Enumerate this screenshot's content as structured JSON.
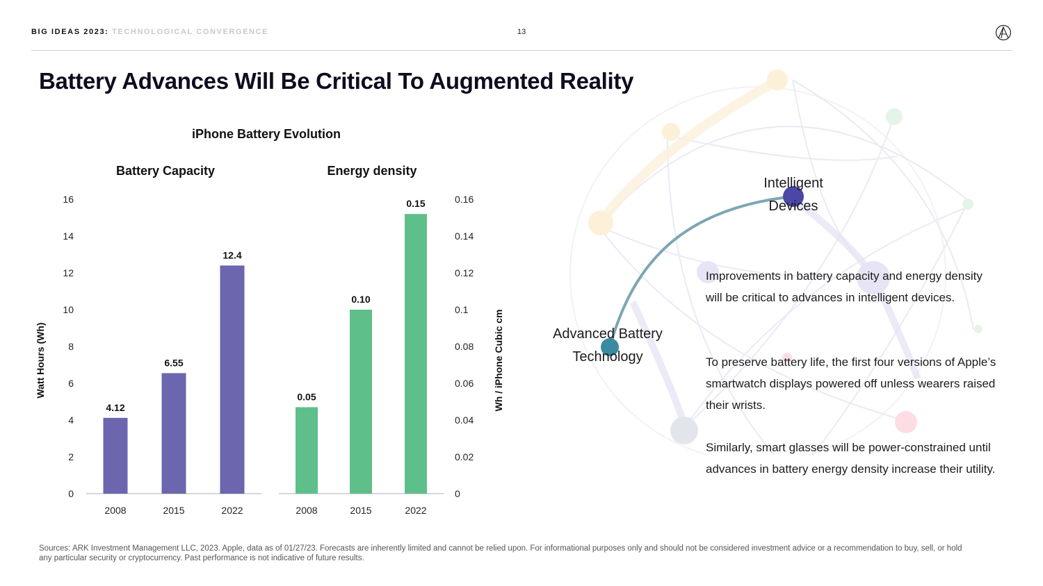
{
  "header": {
    "series": "BIG IDEAS 2023",
    "topic": "TECHNOLOGICAL CONVERGENCE",
    "page_number": "13"
  },
  "title": "Battery Advances Will Be Critical To Augmented Reality",
  "figure_title": "iPhone Battery Evolution",
  "colors": {
    "capacity_bar": "#6b66ad",
    "density_bar": "#5fbf8a",
    "arc": "#7da6b4",
    "node_devices": "#4b47a6",
    "node_battery": "#3a8aa0"
  },
  "chart_data": [
    {
      "type": "bar",
      "title": "Battery Capacity",
      "categories": [
        "2008",
        "2015",
        "2022"
      ],
      "values": [
        4.12,
        6.55,
        12.4
      ],
      "value_labels": [
        "4.12",
        "6.55",
        "12.4"
      ],
      "ylabel": "Watt Hours (Wh)",
      "ylim": [
        0,
        16
      ],
      "yticks": [
        "0",
        "2",
        "4",
        "6",
        "8",
        "10",
        "12",
        "14",
        "16"
      ],
      "ytick_values": [
        0,
        2,
        4,
        6,
        8,
        10,
        12,
        14,
        16
      ],
      "grid": false,
      "color": "#6b66ad"
    },
    {
      "type": "bar",
      "title": "Energy density",
      "categories": [
        "2008",
        "2015",
        "2022"
      ],
      "values": [
        0.047,
        0.1,
        0.152
      ],
      "value_labels": [
        "0.05",
        "0.10",
        "0.15"
      ],
      "ylabel": "Wh / iPhone Cubic cm",
      "ylim": [
        0,
        0.16
      ],
      "yticks": [
        "0",
        "0.02",
        "0.04",
        "0.06",
        "0.08",
        "0.1",
        "0.12",
        "0.14",
        "0.16"
      ],
      "ytick_values": [
        0,
        0.02,
        0.04,
        0.06,
        0.08,
        0.1,
        0.12,
        0.14,
        0.16
      ],
      "grid": false,
      "color": "#5fbf8a"
    }
  ],
  "diagram": {
    "node_devices": [
      "Intelligent",
      "Devices"
    ],
    "node_battery": [
      "Advanced Battery",
      "Technology"
    ]
  },
  "paragraphs": [
    "Improvements in battery capacity and energy density will be critical to advances in intelligent devices.",
    "To preserve battery life, the first four versions of Apple’s smartwatch displays powered off unless wearers raised their wrists.",
    "Similarly, smart glasses will be power-constrained until advances in battery energy density increase their utility."
  ],
  "sources": "Sources: ARK Investment Management LLC, 2023. Apple, data as of 01/27/23. Forecasts are inherently limited and cannot be relied upon. For informational purposes only and should not be considered investment advice or a recommendation to buy, sell, or hold any particular security or cryptocurrency. Past performance is not indicative of future results."
}
